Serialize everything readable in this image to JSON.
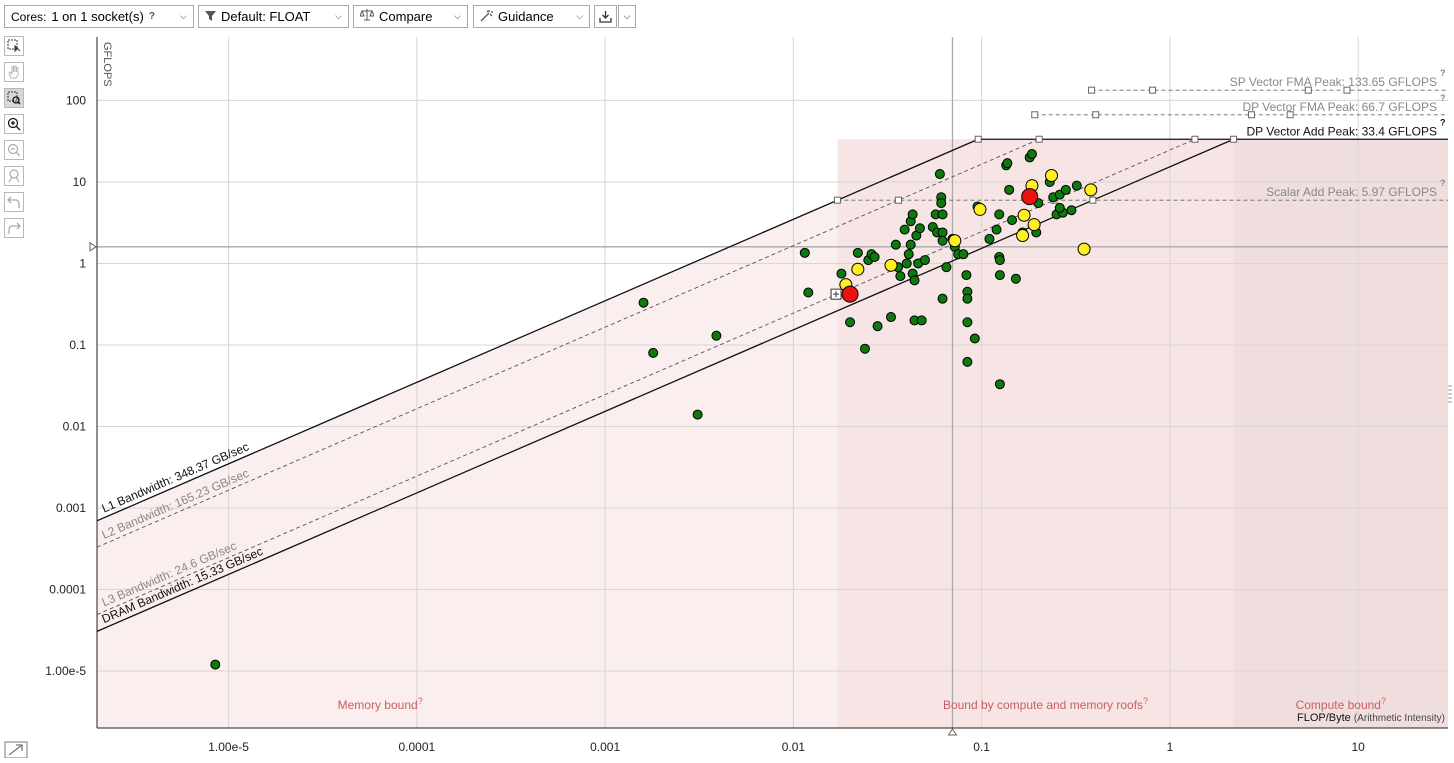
{
  "toolbar": {
    "cores_label": "Cores:",
    "cores_value": "1 on 1 socket(s)",
    "help_glyph": "?",
    "filter_label": "Default: FLOAT",
    "compare_label": "Compare",
    "guidance_label": "Guidance"
  },
  "icons": [
    "filter-icon",
    "scale-icon",
    "wand-icon",
    "export-icon",
    "chevron-down-icon",
    "select-icon",
    "pan-icon",
    "zoom-rect-icon",
    "zoom-in-icon",
    "zoom-out-icon",
    "fit-icon",
    "undo-icon",
    "redo-icon",
    "expand-icon"
  ],
  "colors": {
    "dot_green": "#0c7a0c",
    "dot_yellow": "#ffee22",
    "dot_red": "#ee1111",
    "region_fill": "#fbeeee",
    "region_label": "#c86060",
    "roof_gray": "#888888"
  },
  "chart_data": {
    "type": "scatter",
    "xlabel": "FLOP/Byte",
    "xlabel_sub": "(Arithmetic Intensity)",
    "ylabel": "GFLOPS",
    "x_scale": "log",
    "y_scale": "log",
    "xlim": [
      2e-06,
      30
    ],
    "ylim": [
      2e-06,
      600
    ],
    "x_ticks": [
      {
        "v": 1e-05,
        "label": "1.00e-5"
      },
      {
        "v": 0.0001,
        "label": "0.0001"
      },
      {
        "v": 0.001,
        "label": "0.001"
      },
      {
        "v": 0.01,
        "label": "0.01"
      },
      {
        "v": 0.1,
        "label": "0.1"
      },
      {
        "v": 1,
        "label": "1"
      },
      {
        "v": 10,
        "label": "10"
      }
    ],
    "y_ticks": [
      {
        "v": 100,
        "label": "100"
      },
      {
        "v": 10,
        "label": "10"
      },
      {
        "v": 1,
        "label": "1"
      },
      {
        "v": 0.1,
        "label": "0.1"
      },
      {
        "v": 0.01,
        "label": "0.01"
      },
      {
        "v": 0.001,
        "label": "0.001"
      },
      {
        "v": 0.0001,
        "label": "0.0001"
      },
      {
        "v": 1e-05,
        "label": "1.00e-5"
      }
    ],
    "compute_roofs": [
      {
        "label": "SP Vector FMA Peak: 133.65 GFLOPS",
        "value": 133.65,
        "style": "dashed",
        "emph": false
      },
      {
        "label": "DP Vector FMA Peak: 66.7 GFLOPS",
        "value": 66.7,
        "style": "dashed",
        "emph": false
      },
      {
        "label": "DP Vector Add Peak: 33.4 GFLOPS",
        "value": 33.4,
        "style": "solid",
        "emph": true
      },
      {
        "label": "Scalar Add Peak: 5.97 GFLOPS",
        "value": 5.97,
        "style": "dashed",
        "emph": false
      }
    ],
    "memory_roofs": [
      {
        "label": "L1 Bandwidth: 348.37 GB/sec",
        "bw": 348.37,
        "style": "solid",
        "emph": true
      },
      {
        "label": "L2 Bandwidth: 165.23 GB/sec",
        "bw": 165.23,
        "style": "dashed",
        "emph": false
      },
      {
        "label": "L3 Bandwidth: 24.6 GB/sec",
        "bw": 24.6,
        "style": "dashed",
        "emph": false
      },
      {
        "label": "DRAM Bandwidth: 15.33 GB/sec",
        "bw": 15.33,
        "style": "solid",
        "emph": true
      }
    ],
    "regions": [
      "Memory bound",
      "Bound by compute and memory roofs",
      "Compute bound"
    ],
    "region_help": "?",
    "crosshair": {
      "x": 0.07,
      "y": 1.6
    },
    "points": [
      {
        "x": 8.5e-06,
        "y": 1.2e-05,
        "c": "green"
      },
      {
        "x": 0.0016,
        "y": 0.33,
        "c": "green"
      },
      {
        "x": 0.0018,
        "y": 0.08,
        "c": "green"
      },
      {
        "x": 0.0031,
        "y": 0.014,
        "c": "green"
      },
      {
        "x": 0.0039,
        "y": 0.13,
        "c": "green"
      },
      {
        "x": 0.0115,
        "y": 1.35,
        "c": "green"
      },
      {
        "x": 0.012,
        "y": 0.44,
        "c": "green"
      },
      {
        "x": 0.018,
        "y": 0.75,
        "c": "green"
      },
      {
        "x": 0.02,
        "y": 0.19,
        "c": "green"
      },
      {
        "x": 0.022,
        "y": 1.35,
        "c": "green"
      },
      {
        "x": 0.024,
        "y": 0.09,
        "c": "green"
      },
      {
        "x": 0.025,
        "y": 1.1,
        "c": "green"
      },
      {
        "x": 0.026,
        "y": 1.3,
        "c": "green"
      },
      {
        "x": 0.027,
        "y": 1.2,
        "c": "green"
      },
      {
        "x": 0.028,
        "y": 0.17,
        "c": "green"
      },
      {
        "x": 0.033,
        "y": 0.22,
        "c": "green"
      },
      {
        "x": 0.035,
        "y": 1.7,
        "c": "green"
      },
      {
        "x": 0.036,
        "y": 0.9,
        "c": "green"
      },
      {
        "x": 0.037,
        "y": 0.7,
        "c": "green"
      },
      {
        "x": 0.039,
        "y": 2.6,
        "c": "green"
      },
      {
        "x": 0.04,
        "y": 1.0,
        "c": "green"
      },
      {
        "x": 0.041,
        "y": 1.3,
        "c": "green"
      },
      {
        "x": 0.042,
        "y": 1.7,
        "c": "green"
      },
      {
        "x": 0.042,
        "y": 3.3,
        "c": "green"
      },
      {
        "x": 0.043,
        "y": 4.0,
        "c": "green"
      },
      {
        "x": 0.043,
        "y": 0.75,
        "c": "green"
      },
      {
        "x": 0.044,
        "y": 0.2,
        "c": "green"
      },
      {
        "x": 0.044,
        "y": 0.62,
        "c": "green"
      },
      {
        "x": 0.045,
        "y": 2.2,
        "c": "green"
      },
      {
        "x": 0.046,
        "y": 1.0,
        "c": "green"
      },
      {
        "x": 0.047,
        "y": 2.7,
        "c": "green"
      },
      {
        "x": 0.048,
        "y": 0.2,
        "c": "green"
      },
      {
        "x": 0.05,
        "y": 1.1,
        "c": "green"
      },
      {
        "x": 0.055,
        "y": 2.8,
        "c": "green"
      },
      {
        "x": 0.057,
        "y": 4.0,
        "c": "green"
      },
      {
        "x": 0.058,
        "y": 2.4,
        "c": "green"
      },
      {
        "x": 0.06,
        "y": 12.5,
        "c": "green"
      },
      {
        "x": 0.061,
        "y": 6.5,
        "c": "green"
      },
      {
        "x": 0.061,
        "y": 5.5,
        "c": "green"
      },
      {
        "x": 0.062,
        "y": 4.0,
        "c": "green"
      },
      {
        "x": 0.062,
        "y": 2.4,
        "c": "green"
      },
      {
        "x": 0.062,
        "y": 1.9,
        "c": "green"
      },
      {
        "x": 0.062,
        "y": 0.37,
        "c": "green"
      },
      {
        "x": 0.065,
        "y": 0.9,
        "c": "green"
      },
      {
        "x": 0.07,
        "y": 2.0,
        "c": "green"
      },
      {
        "x": 0.072,
        "y": 1.6,
        "c": "green"
      },
      {
        "x": 0.075,
        "y": 1.3,
        "c": "green"
      },
      {
        "x": 0.08,
        "y": 1.3,
        "c": "green"
      },
      {
        "x": 0.083,
        "y": 0.72,
        "c": "green"
      },
      {
        "x": 0.084,
        "y": 0.45,
        "c": "green"
      },
      {
        "x": 0.084,
        "y": 0.37,
        "c": "green"
      },
      {
        "x": 0.084,
        "y": 0.19,
        "c": "green"
      },
      {
        "x": 0.084,
        "y": 0.062,
        "c": "green"
      },
      {
        "x": 0.092,
        "y": 0.12,
        "c": "green"
      },
      {
        "x": 0.095,
        "y": 5.0,
        "c": "green"
      },
      {
        "x": 0.11,
        "y": 2.0,
        "c": "green"
      },
      {
        "x": 0.12,
        "y": 2.6,
        "c": "green"
      },
      {
        "x": 0.124,
        "y": 4.0,
        "c": "green"
      },
      {
        "x": 0.124,
        "y": 1.2,
        "c": "green"
      },
      {
        "x": 0.125,
        "y": 1.1,
        "c": "green"
      },
      {
        "x": 0.125,
        "y": 0.72,
        "c": "green"
      },
      {
        "x": 0.125,
        "y": 0.033,
        "c": "green"
      },
      {
        "x": 0.135,
        "y": 16.0,
        "c": "green"
      },
      {
        "x": 0.137,
        "y": 17.0,
        "c": "green"
      },
      {
        "x": 0.14,
        "y": 8.0,
        "c": "green"
      },
      {
        "x": 0.145,
        "y": 3.4,
        "c": "green"
      },
      {
        "x": 0.152,
        "y": 0.65,
        "c": "green"
      },
      {
        "x": 0.165,
        "y": 2.4,
        "c": "green"
      },
      {
        "x": 0.18,
        "y": 20.0,
        "c": "green"
      },
      {
        "x": 0.185,
        "y": 22.0,
        "c": "green"
      },
      {
        "x": 0.195,
        "y": 2.4,
        "c": "green"
      },
      {
        "x": 0.2,
        "y": 5.5,
        "c": "green"
      },
      {
        "x": 0.23,
        "y": 10.0,
        "c": "green"
      },
      {
        "x": 0.24,
        "y": 6.5,
        "c": "green"
      },
      {
        "x": 0.25,
        "y": 4.0,
        "c": "green"
      },
      {
        "x": 0.26,
        "y": 7.0,
        "c": "green"
      },
      {
        "x": 0.27,
        "y": 4.2,
        "c": "green"
      },
      {
        "x": 0.28,
        "y": 8.0,
        "c": "green"
      },
      {
        "x": 0.3,
        "y": 4.5,
        "c": "green"
      },
      {
        "x": 0.32,
        "y": 9.0,
        "c": "green"
      },
      {
        "x": 0.26,
        "y": 4.8,
        "c": "green"
      },
      {
        "x": 0.019,
        "y": 0.55,
        "c": "yellow"
      },
      {
        "x": 0.022,
        "y": 0.85,
        "c": "yellow"
      },
      {
        "x": 0.033,
        "y": 0.95,
        "c": "yellow"
      },
      {
        "x": 0.072,
        "y": 1.9,
        "c": "yellow"
      },
      {
        "x": 0.098,
        "y": 4.6,
        "c": "yellow"
      },
      {
        "x": 0.165,
        "y": 2.2,
        "c": "yellow"
      },
      {
        "x": 0.168,
        "y": 3.9,
        "c": "yellow"
      },
      {
        "x": 0.185,
        "y": 9.0,
        "c": "yellow"
      },
      {
        "x": 0.19,
        "y": 3.0,
        "c": "yellow"
      },
      {
        "x": 0.235,
        "y": 12.0,
        "c": "yellow"
      },
      {
        "x": 0.35,
        "y": 1.5,
        "c": "yellow"
      },
      {
        "x": 0.38,
        "y": 8.0,
        "c": "yellow"
      },
      {
        "x": 0.02,
        "y": 0.42,
        "c": "red"
      },
      {
        "x": 0.18,
        "y": 6.6,
        "c": "red"
      }
    ]
  }
}
